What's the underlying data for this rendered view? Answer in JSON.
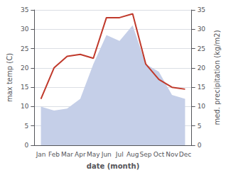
{
  "chart_data": {
    "type": "line",
    "categories": [
      "Jan",
      "Feb",
      "Mar",
      "Apr",
      "May",
      "Jun",
      "Jul",
      "Aug",
      "Sep",
      "Oct",
      "Nov",
      "Dec"
    ],
    "series": [
      {
        "type": "area",
        "color": "#c5cfe8",
        "values": [
          10,
          9,
          9.5,
          12,
          21,
          28.5,
          27,
          31,
          21,
          19,
          13,
          12
        ]
      },
      {
        "type": "line",
        "color": "#c0392b",
        "axis": "y2",
        "values": [
          12,
          20,
          23,
          23.5,
          22.5,
          33,
          33,
          34,
          21,
          17,
          15,
          14.5
        ]
      }
    ],
    "xlabel": "date (month)",
    "ylabel": "max temp (C)",
    "y2label": "med. precipitation (kg/m2)",
    "ylim": [
      0,
      35
    ],
    "yticks": [
      0,
      5,
      10,
      15,
      20,
      25,
      30,
      35
    ],
    "y2lim": [
      0,
      35
    ],
    "y2ticks": [
      0,
      5,
      10,
      15,
      20,
      25,
      30,
      35
    ],
    "grid": true
  }
}
